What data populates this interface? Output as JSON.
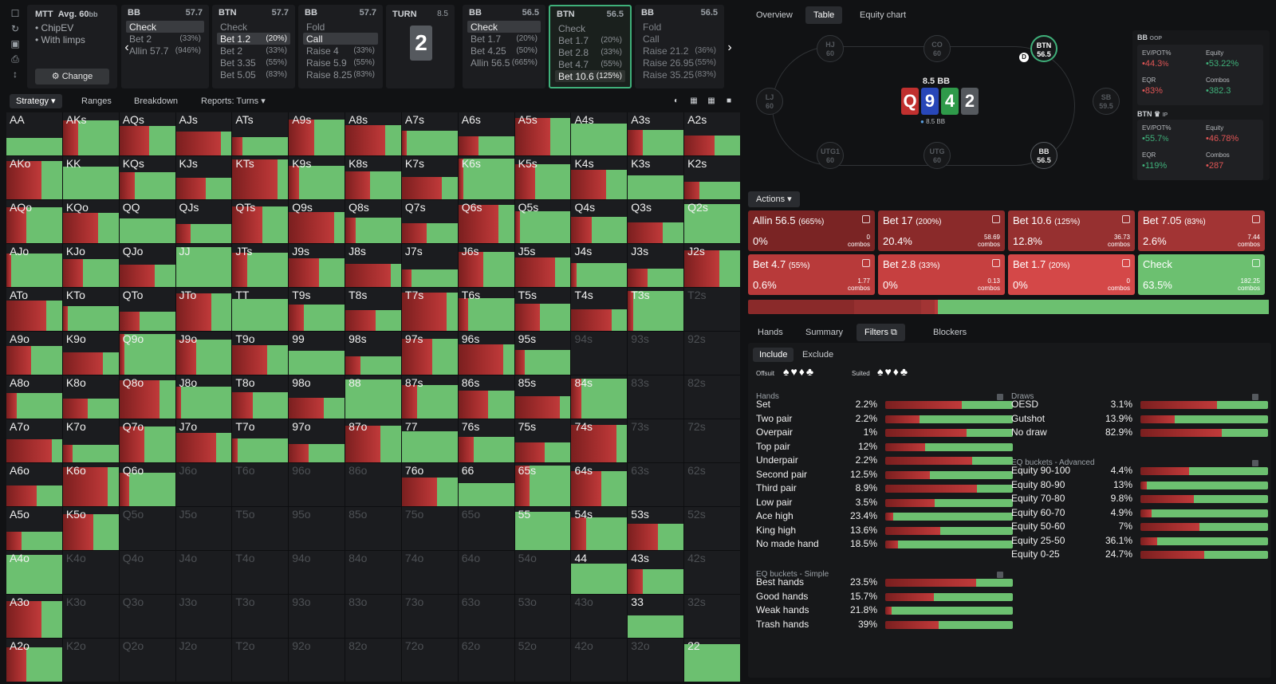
{
  "rail_icons": [
    "bookmark-icon",
    "history-icon",
    "save-icon",
    "printer-icon",
    "text-height-icon"
  ],
  "game": {
    "title": "MTT",
    "depth": "Avg. 60",
    "depth_unit": "bb",
    "opt1": "ChipEV",
    "opt2": "With limps",
    "change": "Change"
  },
  "nodes": [
    {
      "pos": "BB",
      "stack": "57.7",
      "actions": [
        {
          "name": "Check",
          "pct": "",
          "sel": true
        },
        {
          "name": "Bet 2",
          "pct": "(33%)"
        },
        {
          "name": "Allin 57.7",
          "pct": "(946%)"
        }
      ]
    },
    {
      "pos": "BTN",
      "stack": "57.7",
      "actions": [
        {
          "name": "Check",
          "pct": ""
        },
        {
          "name": "Bet 1.2",
          "pct": "(20%)",
          "sel": true
        },
        {
          "name": "Bet 2",
          "pct": "(33%)"
        },
        {
          "name": "Bet 3.35",
          "pct": "(55%)"
        },
        {
          "name": "Bet 5.05",
          "pct": "(83%)"
        }
      ]
    },
    {
      "pos": "BB",
      "stack": "57.7",
      "actions": [
        {
          "name": "Fold",
          "pct": ""
        },
        {
          "name": "Call",
          "pct": "",
          "sel": true
        },
        {
          "name": "Raise 4",
          "pct": "(33%)"
        },
        {
          "name": "Raise 5.9",
          "pct": "(55%)"
        },
        {
          "name": "Raise 8.25",
          "pct": "(83%)"
        }
      ]
    },
    {
      "pos": "BB",
      "stack": "56.5",
      "actions": [
        {
          "name": "Check",
          "pct": "",
          "sel": true
        },
        {
          "name": "Bet 1.7",
          "pct": "(20%)"
        },
        {
          "name": "Bet 4.25",
          "pct": "(50%)"
        },
        {
          "name": "Allin 56.5",
          "pct": "(665%)"
        }
      ]
    },
    {
      "pos": "BTN",
      "stack": "56.5",
      "actions": [
        {
          "name": "Check",
          "pct": ""
        },
        {
          "name": "Bet 1.7",
          "pct": "(20%)"
        },
        {
          "name": "Bet 2.8",
          "pct": "(33%)"
        },
        {
          "name": "Bet 4.7",
          "pct": "(55%)"
        },
        {
          "name": "Bet 10.6",
          "pct": "(125%)",
          "sel": true
        }
      ]
    },
    {
      "pos": "BB",
      "stack": "56.5",
      "actions": [
        {
          "name": "Fold",
          "pct": ""
        },
        {
          "name": "Call",
          "pct": ""
        },
        {
          "name": "Raise 21.2",
          "pct": "(36%)"
        },
        {
          "name": "Raise 26.95",
          "pct": "(55%)"
        },
        {
          "name": "Raise 35.25",
          "pct": "(83%)"
        }
      ]
    }
  ],
  "turn": {
    "label": "TURN",
    "pot": "8.5",
    "card": "2"
  },
  "gridbar": {
    "strategy": "Strategy",
    "ranges": "Ranges",
    "breakdown": "Breakdown",
    "reports": "Reports: Turns"
  },
  "grid": {
    "labels": [
      [
        "AA",
        "AKs",
        "AQs",
        "AJs",
        "ATs",
        "A9s",
        "A8s",
        "A7s",
        "A6s",
        "A5s",
        "A4s",
        "A3s",
        "A2s"
      ],
      [
        "AKo",
        "KK",
        "KQs",
        "KJs",
        "KTs",
        "K9s",
        "K8s",
        "K7s",
        "K6s",
        "K5s",
        "K4s",
        "K3s",
        "K2s"
      ],
      [
        "AQo",
        "KQo",
        "QQ",
        "QJs",
        "QTs",
        "Q9s",
        "Q8s",
        "Q7s",
        "Q6s",
        "Q5s",
        "Q4s",
        "Q3s",
        "Q2s"
      ],
      [
        "AJo",
        "KJo",
        "QJo",
        "JJ",
        "JTs",
        "J9s",
        "J8s",
        "J7s",
        "J6s",
        "J5s",
        "J4s",
        "J3s",
        "J2s"
      ],
      [
        "ATo",
        "KTo",
        "QTo",
        "JTo",
        "TT",
        "T9s",
        "T8s",
        "T7s",
        "T6s",
        "T5s",
        "T4s",
        "T3s",
        "T2s"
      ],
      [
        "A9o",
        "K9o",
        "Q9o",
        "J9o",
        "T9o",
        "99",
        "98s",
        "97s",
        "96s",
        "95s",
        "94s",
        "93s",
        "92s"
      ],
      [
        "A8o",
        "K8o",
        "Q8o",
        "J8o",
        "T8o",
        "98o",
        "88",
        "87s",
        "86s",
        "85s",
        "84s",
        "83s",
        "82s"
      ],
      [
        "A7o",
        "K7o",
        "Q7o",
        "J7o",
        "T7o",
        "97o",
        "87o",
        "77",
        "76s",
        "75s",
        "74s",
        "73s",
        "72s"
      ],
      [
        "A6o",
        "K6o",
        "Q6o",
        "J6o",
        "T6o",
        "96o",
        "86o",
        "76o",
        "66",
        "65s",
        "64s",
        "63s",
        "62s"
      ],
      [
        "A5o",
        "K5o",
        "Q5o",
        "J5o",
        "T5o",
        "95o",
        "85o",
        "75o",
        "65o",
        "55",
        "54s",
        "53s",
        "52s"
      ],
      [
        "A4o",
        "K4o",
        "Q4o",
        "J4o",
        "T4o",
        "94o",
        "84o",
        "74o",
        "64o",
        "54o",
        "44",
        "43s",
        "42s"
      ],
      [
        "A3o",
        "K3o",
        "Q3o",
        "J3o",
        "T3o",
        "93o",
        "83o",
        "73o",
        "63o",
        "53o",
        "43o",
        "33",
        "32s"
      ],
      [
        "A2o",
        "K2o",
        "Q2o",
        "J2o",
        "T2o",
        "92o",
        "82o",
        "72o",
        "62o",
        "52o",
        "42o",
        "32o",
        "22"
      ]
    ]
  },
  "right_tabs": {
    "overview": "Overview",
    "table": "Table",
    "equity": "Equity chart"
  },
  "table": {
    "pot": "8.5 BB",
    "sub": "8.5 BB",
    "dealer": "D",
    "board": [
      {
        "r": "Q",
        "c": "#c0302f"
      },
      {
        "r": "9",
        "c": "#2847b8"
      },
      {
        "r": "4",
        "c": "#2f9a4a"
      },
      {
        "r": "2",
        "c": "#55595e"
      }
    ],
    "seats": {
      "hj": "HJ",
      "hj_s": "60",
      "co": "CO",
      "co_s": "60",
      "btn": "BTN",
      "btn_s": "56.5",
      "lj": "LJ",
      "lj_s": "60",
      "sb": "SB",
      "sb_s": "59.5",
      "utg1": "UTG1",
      "utg1_s": "60",
      "utg": "UTG",
      "utg_s": "60",
      "bb": "BB",
      "bb_s": "56.5"
    }
  },
  "stats": {
    "oop": {
      "pos": "BB",
      "tag": "OOP",
      "evpot_l": "EV/POT%",
      "evpot": "44.3",
      "eq_l": "Equity",
      "eq": "53.22%",
      "eqr_l": "EQR",
      "eqr": "83%",
      "combos_l": "Combos",
      "combos": "382.3"
    },
    "ip": {
      "pos": "BTN",
      "tag": "IP",
      "evpot_l": "EV/POT%",
      "evpot": "55.7",
      "eq_l": "Equity",
      "eq": "46.78%",
      "eqr_l": "EQR",
      "eqr": "119%",
      "combos_l": "Combos",
      "combos": "287"
    }
  },
  "actions_label": "Actions",
  "actions": [
    {
      "name": "Allin 56.5",
      "pct_tag": "(665%)",
      "freq": "0%",
      "combos": "0",
      "color": "#7a2424"
    },
    {
      "name": "Bet 17",
      "pct_tag": "(200%)",
      "freq": "20.4%",
      "combos": "58.69",
      "color": "#8a2a2a"
    },
    {
      "name": "Bet 10.6",
      "pct_tag": "(125%)",
      "freq": "12.8%",
      "combos": "36.73",
      "color": "#963030"
    },
    {
      "name": "Bet 7.05",
      "pct_tag": "(83%)",
      "freq": "2.6%",
      "combos": "7.44",
      "color": "#a23434"
    },
    {
      "name": "Bet 4.7",
      "pct_tag": "(55%)",
      "freq": "0.6%",
      "combos": "1.77",
      "color": "#b83a3a"
    },
    {
      "name": "Bet 2.8",
      "pct_tag": "(33%)",
      "freq": "0%",
      "combos": "0.13",
      "color": "#c64040"
    },
    {
      "name": "Bet 1.7",
      "pct_tag": "(20%)",
      "freq": "0%",
      "combos": "0",
      "color": "#d44848"
    },
    {
      "name": "Check",
      "pct_tag": "",
      "freq": "63.5%",
      "combos": "182.25",
      "color": "#6cc070"
    }
  ],
  "combos_word": "combos",
  "filter_tabs": {
    "hands": "Hands",
    "summary": "Summary",
    "filters": "Filters",
    "blockers": "Blockers"
  },
  "filters": {
    "include": "Include",
    "exclude": "Exclude",
    "offsuit": "Offsuit",
    "suited": "Suited",
    "hands_title": "Hands",
    "hands": [
      [
        "Set",
        "2.2%"
      ],
      [
        "Two pair",
        "2.2%"
      ],
      [
        "Overpair",
        "1%"
      ],
      [
        "Top pair",
        "12%"
      ],
      [
        "Underpair",
        "2.2%"
      ],
      [
        "Second pair",
        "12.5%"
      ],
      [
        "Third pair",
        "8.9%"
      ],
      [
        "Low pair",
        "3.5%"
      ],
      [
        "Ace high",
        "23.4%"
      ],
      [
        "King high",
        "13.6%"
      ],
      [
        "No made hand",
        "18.5%"
      ]
    ],
    "simple_title": "EQ buckets - Simple",
    "simple": [
      [
        "Best hands",
        "23.5%"
      ],
      [
        "Good hands",
        "15.7%"
      ],
      [
        "Weak hands",
        "21.8%"
      ],
      [
        "Trash hands",
        "39%"
      ]
    ],
    "draws_title": "Draws",
    "draws": [
      [
        "OESD",
        "3.1%"
      ],
      [
        "Gutshot",
        "13.9%"
      ],
      [
        "No draw",
        "82.9%"
      ]
    ],
    "adv_title": "EQ buckets - Advanced",
    "adv": [
      [
        "Equity 90-100",
        "4.4%"
      ],
      [
        "Equity 80-90",
        "13%"
      ],
      [
        "Equity 70-80",
        "9.8%"
      ],
      [
        "Equity 60-70",
        "4.9%"
      ],
      [
        "Equity 50-60",
        "7%"
      ],
      [
        "Equity 25-50",
        "36.1%"
      ],
      [
        "Equity 0-25",
        "24.7%"
      ]
    ]
  }
}
